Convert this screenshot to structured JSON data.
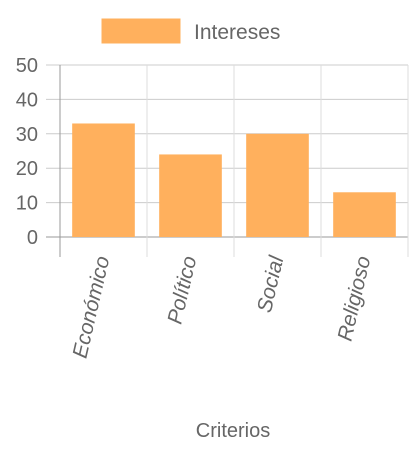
{
  "chart_data": {
    "type": "bar",
    "categories": [
      "Económico",
      "Político",
      "Social",
      "Religioso"
    ],
    "series": [
      {
        "name": "Intereses",
        "values": [
          33,
          24,
          30,
          13
        ],
        "color": "#ffb05d"
      }
    ],
    "xlabel": "Criterios",
    "ylabel": "",
    "ylim": [
      0,
      50
    ],
    "yticks": [
      0,
      10,
      20,
      30,
      40,
      50
    ],
    "grid": true,
    "legend_position": "top"
  }
}
